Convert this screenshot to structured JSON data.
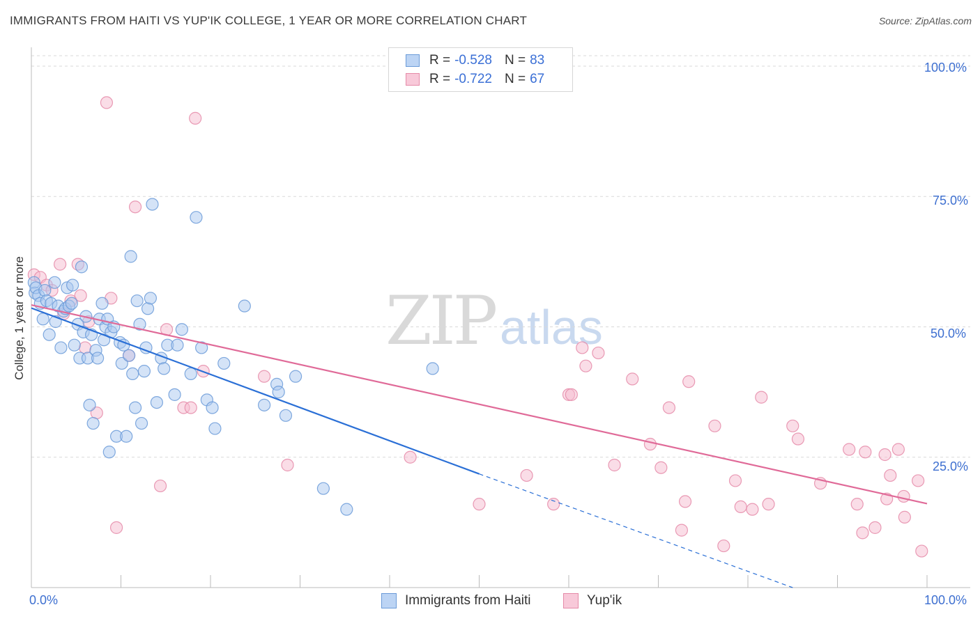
{
  "title": "IMMIGRANTS FROM HAITI VS YUP'IK COLLEGE, 1 YEAR OR MORE CORRELATION CHART",
  "source": "Source: ZipAtlas.com",
  "watermark": {
    "a": "ZIP",
    "b": "atlas"
  },
  "legend": [
    {
      "r_label": "R =",
      "r_value": "-0.528",
      "n_label": "N =",
      "n_value": "83"
    },
    {
      "r_label": "R =",
      "r_value": "-0.722",
      "n_label": "N =",
      "n_value": "67"
    }
  ],
  "colors": {
    "blue_fill": "#a9c8f0",
    "blue_stroke": "#6a9ad8",
    "blue_line": "#2a6fd6",
    "pink_fill": "#f6bcd0",
    "pink_stroke": "#e58aa8",
    "pink_line": "#e06a98",
    "grid": "#d9d9d9",
    "tick_label": "#3d6fd0"
  },
  "chart_data": {
    "type": "scatter",
    "title": "IMMIGRANTS FROM HAITI VS YUP'IK COLLEGE, 1 YEAR OR MORE CORRELATION CHART",
    "xlabel": "",
    "ylabel": "College, 1 year or more",
    "xlim": [
      0,
      100
    ],
    "ylim": [
      0,
      102
    ],
    "x_tick_labels": [
      "0.0%",
      "100.0%"
    ],
    "y_tick_labels": [
      "25.0%",
      "50.0%",
      "75.0%",
      "100.0%"
    ],
    "y_ticks": [
      25,
      50,
      75,
      100
    ],
    "grid": true,
    "legend_position": "top-center",
    "series": [
      {
        "name": "Immigrants from Haiti",
        "color": "#a9c8f0",
        "trend": {
          "x0": 0,
          "y0": 53.6,
          "x1": 50,
          "y1": 21.8,
          "dash_to_x": 85,
          "dash_to_y": 0
        },
        "points": [
          [
            0.3,
            58.5
          ],
          [
            0.4,
            56.5
          ],
          [
            0.5,
            57.5
          ],
          [
            0.8,
            56
          ],
          [
            1,
            54.5
          ],
          [
            1.3,
            51.5
          ],
          [
            1.5,
            57
          ],
          [
            1.7,
            55
          ],
          [
            2,
            48.5
          ],
          [
            2.2,
            54.5
          ],
          [
            2.6,
            58.5
          ],
          [
            2.7,
            51
          ],
          [
            3,
            54
          ],
          [
            3.3,
            46
          ],
          [
            3.6,
            53
          ],
          [
            3.8,
            53.5
          ],
          [
            4,
            57.5
          ],
          [
            4.2,
            54
          ],
          [
            4.5,
            54.5
          ],
          [
            4.6,
            58
          ],
          [
            4.8,
            46.5
          ],
          [
            5.2,
            50.5
          ],
          [
            5.4,
            44
          ],
          [
            5.6,
            61.5
          ],
          [
            5.8,
            49
          ],
          [
            6.1,
            52
          ],
          [
            6.3,
            44
          ],
          [
            6.5,
            35
          ],
          [
            6.7,
            48.5
          ],
          [
            6.9,
            31.5
          ],
          [
            7.2,
            45.5
          ],
          [
            7.4,
            44
          ],
          [
            7.6,
            51.5
          ],
          [
            7.9,
            54.5
          ],
          [
            8.1,
            47.5
          ],
          [
            8.3,
            50
          ],
          [
            8.5,
            51.5
          ],
          [
            8.7,
            26
          ],
          [
            8.9,
            49
          ],
          [
            9.2,
            50
          ],
          [
            9.5,
            29
          ],
          [
            9.9,
            47
          ],
          [
            10.1,
            43
          ],
          [
            10.3,
            46.5
          ],
          [
            10.6,
            29
          ],
          [
            10.9,
            44.5
          ],
          [
            11.1,
            63.5
          ],
          [
            11.3,
            41
          ],
          [
            11.6,
            34.5
          ],
          [
            11.8,
            55
          ],
          [
            12.1,
            50.5
          ],
          [
            12.3,
            31.5
          ],
          [
            12.6,
            41.5
          ],
          [
            12.8,
            46
          ],
          [
            13,
            53.5
          ],
          [
            13.3,
            55.5
          ],
          [
            13.5,
            73.5
          ],
          [
            14,
            35.5
          ],
          [
            14.5,
            44
          ],
          [
            14.8,
            42
          ],
          [
            15.2,
            46.5
          ],
          [
            16,
            37
          ],
          [
            16.3,
            46.5
          ],
          [
            16.8,
            49.5
          ],
          [
            17.8,
            41
          ],
          [
            18.4,
            71
          ],
          [
            19,
            46
          ],
          [
            19.6,
            36
          ],
          [
            20.2,
            34.5
          ],
          [
            20.5,
            30.5
          ],
          [
            21.5,
            43
          ],
          [
            23.8,
            54
          ],
          [
            26,
            35
          ],
          [
            27.4,
            39
          ],
          [
            27.6,
            37.5
          ],
          [
            28.4,
            33
          ],
          [
            29.5,
            40.5
          ],
          [
            32.6,
            19
          ],
          [
            35.2,
            15
          ],
          [
            44.8,
            42
          ]
        ]
      },
      {
        "name": "Yup'ik",
        "color": "#f6bcd0",
        "trend": {
          "x0": 0,
          "y0": 54.2,
          "x1": 100,
          "y1": 16.1
        },
        "points": [
          [
            0.3,
            60
          ],
          [
            1,
            59.5
          ],
          [
            1.7,
            58
          ],
          [
            2.3,
            57
          ],
          [
            3.2,
            62
          ],
          [
            3.6,
            52.5
          ],
          [
            4.4,
            55
          ],
          [
            5.2,
            62
          ],
          [
            5.5,
            56
          ],
          [
            6,
            46
          ],
          [
            6.4,
            51
          ],
          [
            7.3,
            33.5
          ],
          [
            8.4,
            93
          ],
          [
            8.9,
            55.5
          ],
          [
            9.5,
            11.5
          ],
          [
            10.9,
            44.5
          ],
          [
            11.6,
            73
          ],
          [
            14.4,
            19.5
          ],
          [
            15.1,
            49.5
          ],
          [
            17,
            34.5
          ],
          [
            17.8,
            34.5
          ],
          [
            18.3,
            90
          ],
          [
            19.2,
            41.5
          ],
          [
            26,
            40.5
          ],
          [
            28.6,
            23.5
          ],
          [
            42.3,
            25
          ],
          [
            50,
            16
          ],
          [
            55.3,
            21.5
          ],
          [
            58.3,
            16
          ],
          [
            60,
            37
          ],
          [
            60.3,
            37
          ],
          [
            61.5,
            46
          ],
          [
            61.9,
            42.5
          ],
          [
            63.3,
            45
          ],
          [
            65.1,
            23.5
          ],
          [
            67.1,
            40
          ],
          [
            69.1,
            27.5
          ],
          [
            70.3,
            23
          ],
          [
            71.2,
            34.5
          ],
          [
            72.6,
            11
          ],
          [
            73,
            16.5
          ],
          [
            73.4,
            39.5
          ],
          [
            76.3,
            31
          ],
          [
            77.3,
            8
          ],
          [
            78.6,
            20.5
          ],
          [
            79.2,
            15.5
          ],
          [
            80.5,
            15
          ],
          [
            81.5,
            36.5
          ],
          [
            82.3,
            16
          ],
          [
            85,
            31
          ],
          [
            85.6,
            28.5
          ],
          [
            88.1,
            20
          ],
          [
            91.3,
            26.5
          ],
          [
            92.2,
            16
          ],
          [
            92.8,
            10.5
          ],
          [
            93.1,
            26
          ],
          [
            94.2,
            11.5
          ],
          [
            95.3,
            25.5
          ],
          [
            95.5,
            17
          ],
          [
            95.9,
            21.5
          ],
          [
            96.8,
            26.5
          ],
          [
            97.4,
            17.5
          ],
          [
            97.5,
            13.5
          ],
          [
            99,
            20.5
          ],
          [
            99.4,
            7
          ]
        ]
      }
    ]
  },
  "bottom_legend": [
    "Immigrants from Haiti",
    "Yup'ik"
  ]
}
